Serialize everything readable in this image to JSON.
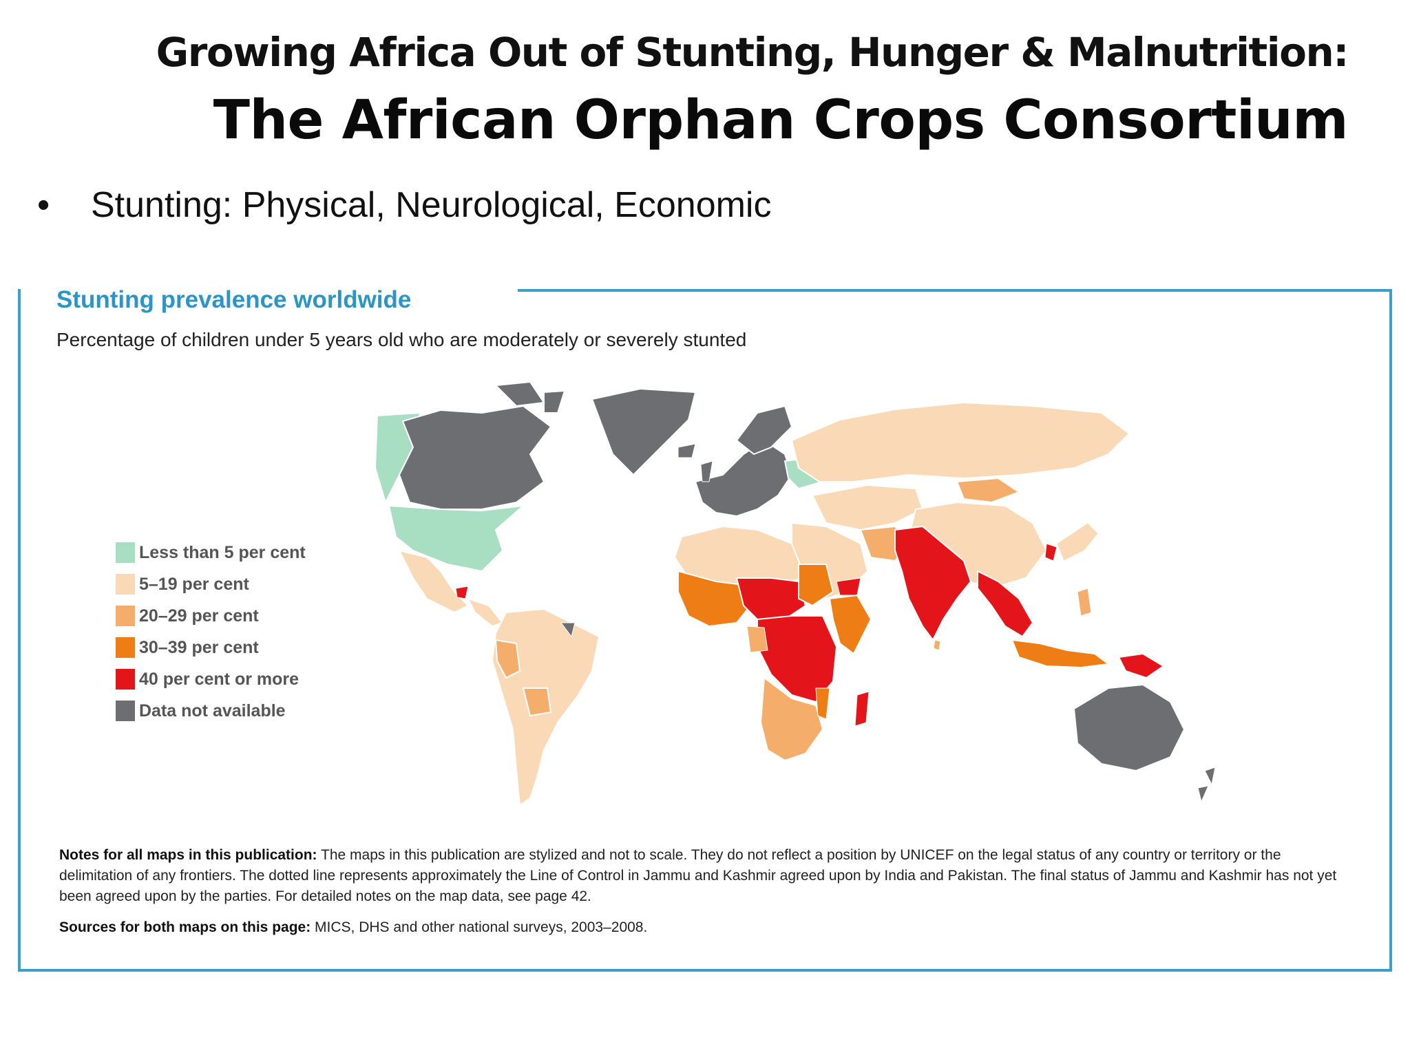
{
  "slide": {
    "title_line1": "Growing Africa Out of Stunting, Hunger & Malnutrition:",
    "title_line2": "The African Orphan Crops Consortium",
    "bullet_glyph": "•",
    "bullet_text": "Stunting:  Physical, Neurological, Economic"
  },
  "panel": {
    "title": "Stunting prevalence worldwide",
    "subtitle": "Percentage of children under 5 years old who are moderately or severely stunted",
    "frame_color": "#3aa0c8",
    "title_color": "#2b95c7"
  },
  "legend": {
    "items": [
      {
        "label": "Less than 5 per cent",
        "color": "#a8dfc3"
      },
      {
        "label": "5–19 per cent",
        "color": "#f9d9b6"
      },
      {
        "label": "20–29 per cent",
        "color": "#f4ad6a"
      },
      {
        "label": "30–39 per cent",
        "color": "#ee7d16"
      },
      {
        "label": "40 per cent or more",
        "color": "#e4141b"
      },
      {
        "label": "Data not available",
        "color": "#6d6e71"
      }
    ]
  },
  "map_classes": {
    "north_america_us": "Less than 5 per cent",
    "canada": "Data not available",
    "greenland": "Data not available",
    "alaska": "Less than 5 per cent",
    "central_america": "5–19 per cent",
    "south_america": "5–19 per cent",
    "europe": "Data not available",
    "russia_central_asia": "5–19 per cent",
    "china": "5–19 per cent",
    "mongolia": "20–29 per cent",
    "south_asia": "40 per cent or more",
    "southeast_asia": "40 per cent or more",
    "west_africa": "30–39 per cent",
    "central_east_africa": "40 per cent or more",
    "north_africa": "5–19 per cent",
    "southern_africa": "20–29 per cent",
    "madagascar": "40 per cent or more",
    "indonesia": "30–39 per cent",
    "papua_new_guinea": "40 per cent or more",
    "australia": "Data not available",
    "new_zealand": "Data not available"
  },
  "notes": {
    "notes_label": "Notes for all maps in this publication:",
    "notes_text": " The maps in this publication are stylized and not to scale. They do not reflect a position by UNICEF on the legal status of any country or territory or the delimitation of any frontiers. The dotted line represents approximately the Line of Control in Jammu and Kashmir agreed upon by India and Pakistan. The final status of Jammu and Kashmir has not yet been agreed upon by the parties. For detailed notes on the map data, see page 42.",
    "sources_label": "Sources for both maps on this page:",
    "sources_text": " MICS, DHS and other national surveys, 2003–2008."
  }
}
